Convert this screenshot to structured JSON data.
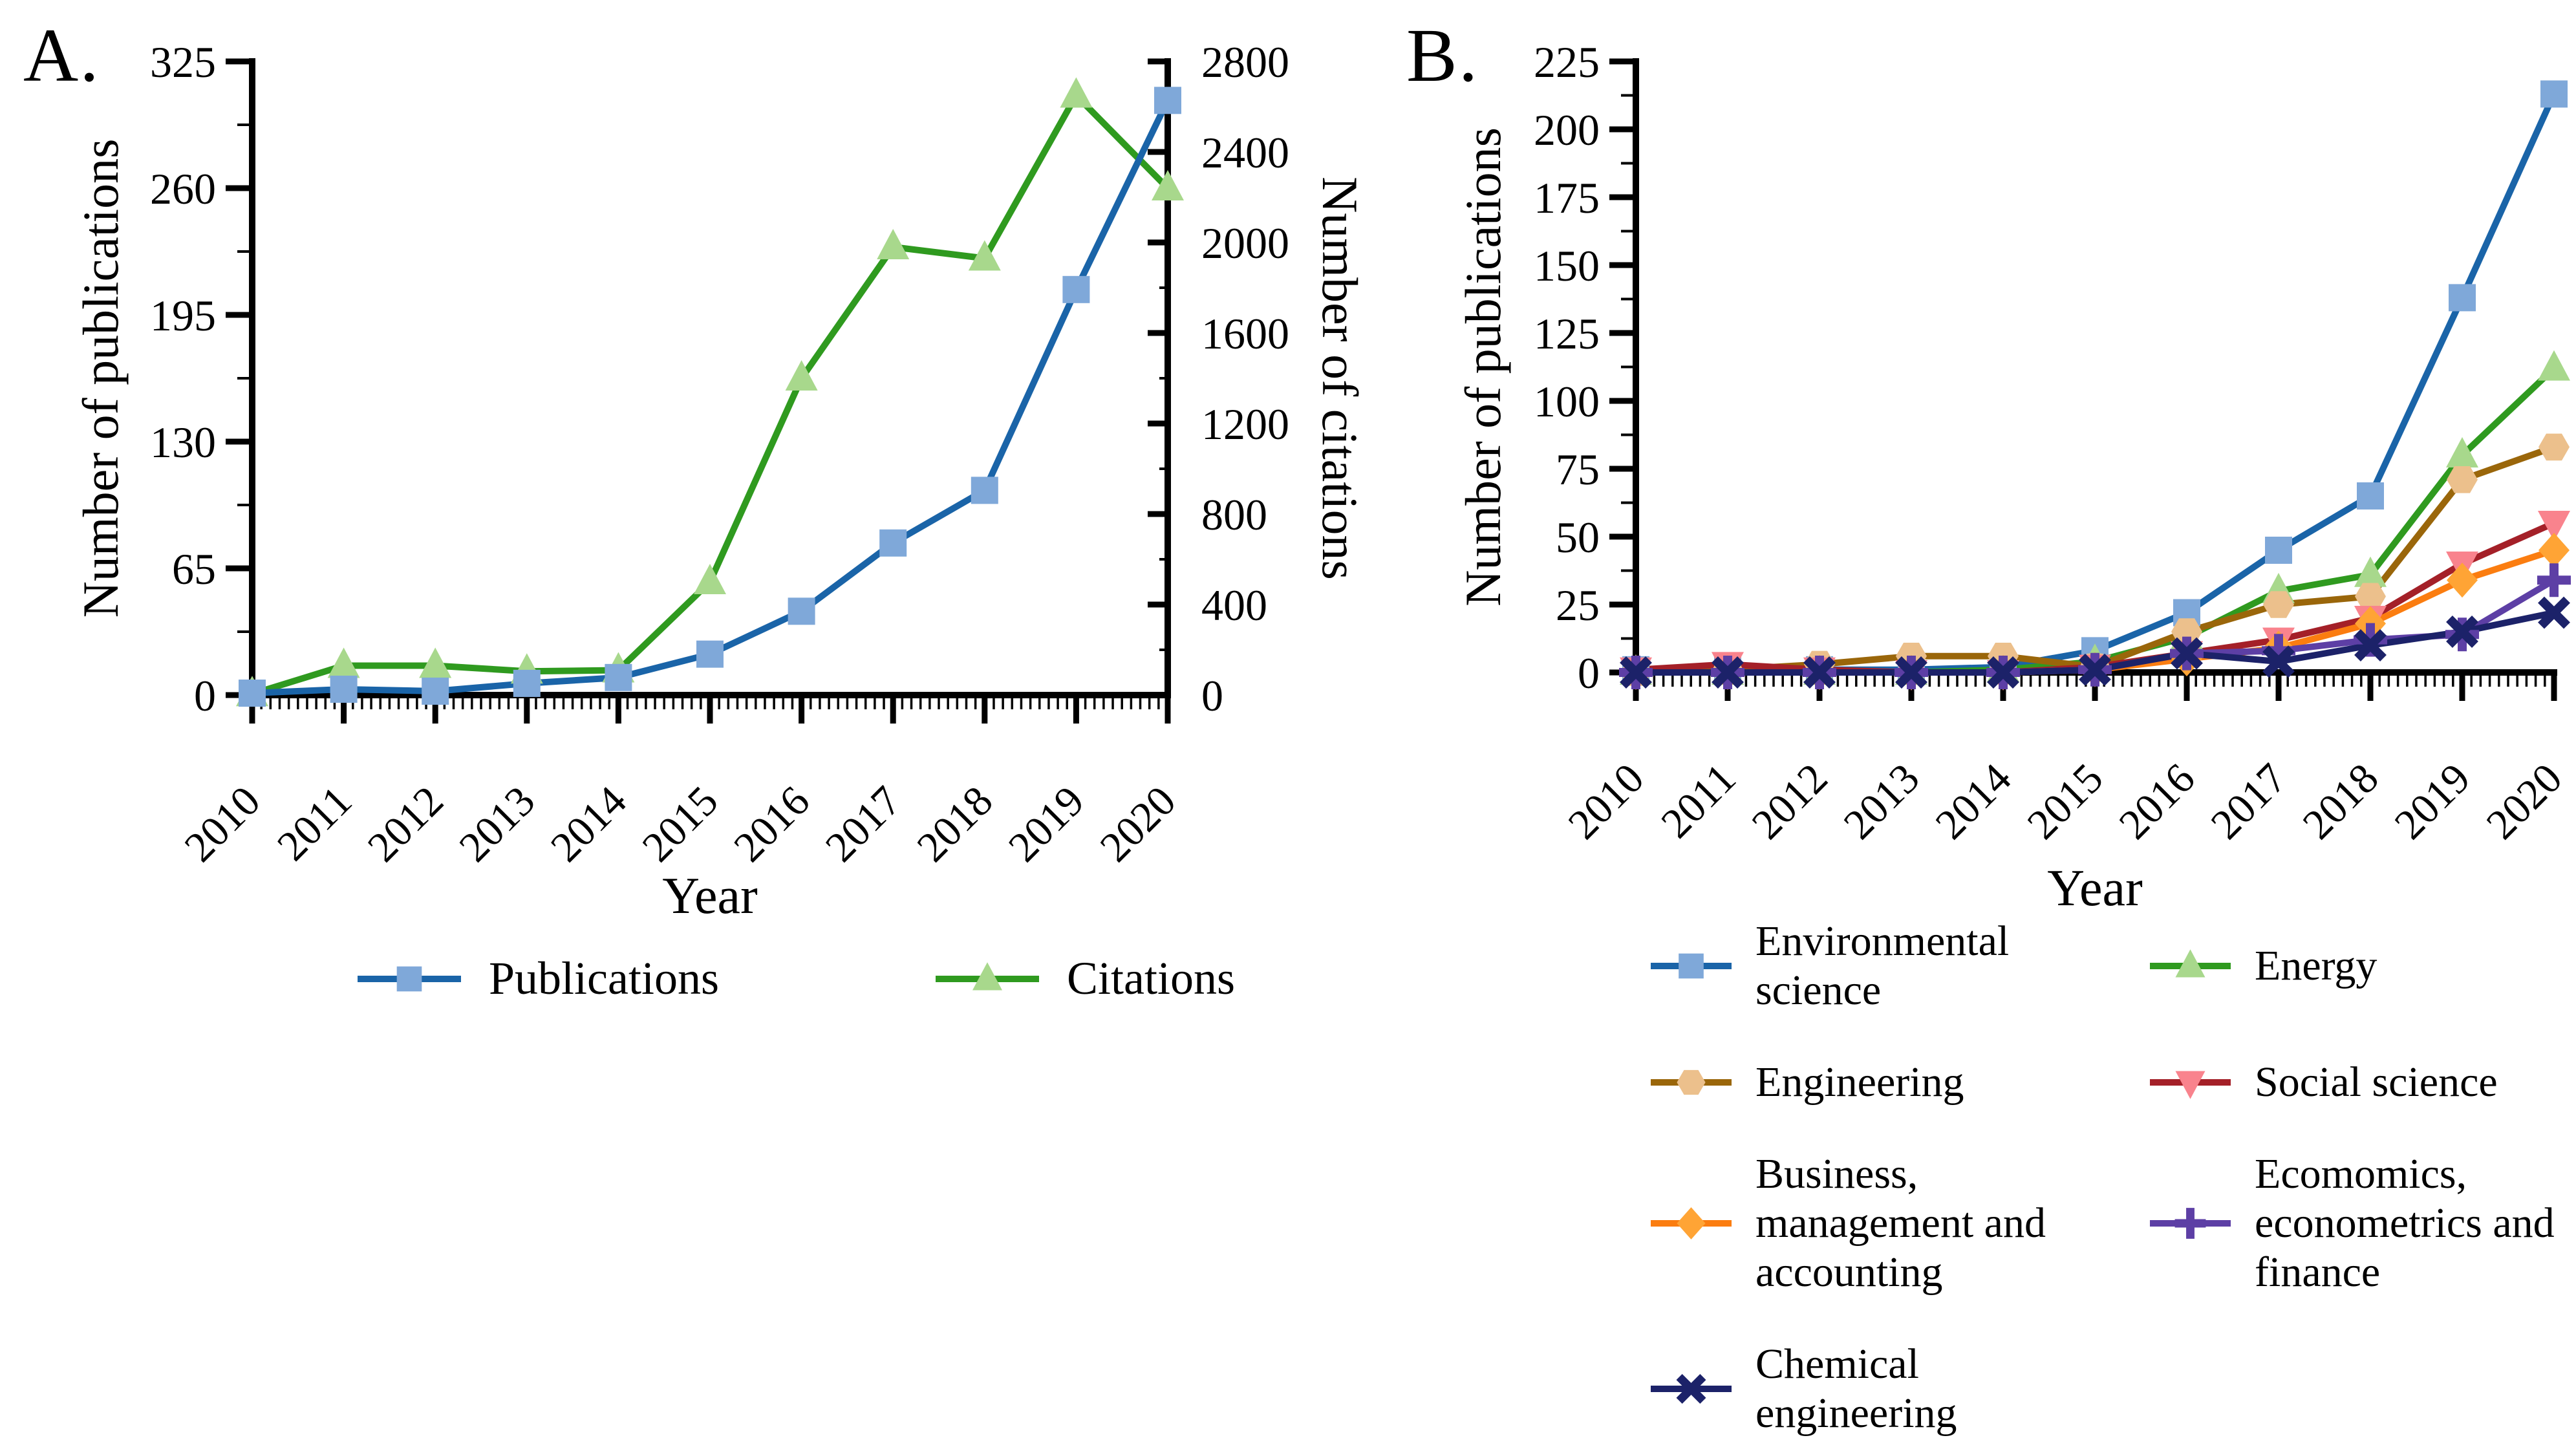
{
  "page": {
    "background": "#ffffff",
    "text_color": "#000000"
  },
  "figure": {
    "panel_a": {
      "label": "A.",
      "x_label": "Year",
      "y_left_label": "Number of publications",
      "y_right_label": "Number of citations",
      "legend": [
        {
          "series_index": 0,
          "label": "Publications"
        },
        {
          "series_index": 1,
          "label": "Citations"
        }
      ]
    },
    "panel_b": {
      "label": "B.",
      "x_label": "Year",
      "y_label": "Number of publications",
      "legend": [
        {
          "series_index": 0,
          "label": "Environmental\nscience"
        },
        {
          "series_index": 2,
          "label": "Engineering"
        },
        {
          "series_index": 4,
          "label": "Business,\nmanagement and\naccounting"
        },
        {
          "series_index": 6,
          "label": "Chemical\nengineering"
        },
        {
          "series_index": 1,
          "label": "Energy"
        },
        {
          "series_index": 3,
          "label": "Social science"
        },
        {
          "series_index": 5,
          "label": "Ecomomics,\neconometrics and\nfinance"
        }
      ]
    }
  },
  "chart_data": [
    {
      "type": "line",
      "panel": "A",
      "title": "",
      "xlabel": "Year",
      "ylabel_left": "Number of publications",
      "ylabel_right": "Number of citations",
      "x": [
        2010,
        2011,
        2012,
        2013,
        2014,
        2015,
        2016,
        2017,
        2018,
        2019,
        2020
      ],
      "ylim_left": [
        0,
        325
      ],
      "ytick_step_left": 65,
      "ylim_right": [
        0,
        2800
      ],
      "ytick_step_right": 400,
      "grid": false,
      "legend_position": "bottom",
      "series": [
        {
          "name": "Publications",
          "axis": "left",
          "marker": "square",
          "line_color": "#1a64a8",
          "marker_color": "#7fa8d9",
          "values": [
            1,
            3,
            2,
            6,
            9,
            21,
            43,
            78,
            105,
            208,
            305
          ]
        },
        {
          "name": "Citations",
          "axis": "right",
          "marker": "triangle-up",
          "line_color": "#2f9a1f",
          "marker_color": "#a8d88c",
          "values": [
            5,
            130,
            130,
            105,
            110,
            500,
            1400,
            1980,
            1930,
            2650,
            2240
          ]
        }
      ]
    },
    {
      "type": "line",
      "panel": "B",
      "title": "",
      "xlabel": "Year",
      "ylabel": "Number of publications",
      "x": [
        2010,
        2011,
        2012,
        2013,
        2014,
        2015,
        2016,
        2017,
        2018,
        2019,
        2020
      ],
      "ylim": [
        0,
        225
      ],
      "ytick_step": 25,
      "grid": false,
      "legend_position": "bottom",
      "series": [
        {
          "name": "Environmental science",
          "marker": "square",
          "line_color": "#1a64a8",
          "marker_color": "#7fa8d9",
          "values": [
            1,
            1,
            1,
            1,
            2,
            8,
            22,
            45,
            65,
            138,
            213
          ]
        },
        {
          "name": "Energy",
          "marker": "triangle-up",
          "line_color": "#2f9a1f",
          "marker_color": "#a8d88c",
          "values": [
            0,
            0,
            0,
            0,
            1,
            4,
            13,
            30,
            36,
            80,
            112
          ]
        },
        {
          "name": "Engineering",
          "marker": "hexagon",
          "line_color": "#9a660a",
          "marker_color": "#ecc08c",
          "values": [
            0,
            1,
            3,
            6,
            6,
            2,
            15,
            25,
            28,
            71,
            83
          ]
        },
        {
          "name": "Social science",
          "marker": "triangle-down",
          "line_color": "#a42028",
          "marker_color": "#f9838d",
          "values": [
            1,
            3,
            1,
            0,
            0,
            2,
            7,
            12,
            20,
            40,
            55
          ]
        },
        {
          "name": "Business, management and accounting",
          "marker": "diamond",
          "line_color": "#fb7d10",
          "marker_color": "#ffa435",
          "values": [
            0,
            0,
            0,
            0,
            0,
            1,
            5,
            9,
            18,
            34,
            45
          ]
        },
        {
          "name": "Ecomomics, econometrics and finance",
          "marker": "plus",
          "line_color": "#5d3fa5",
          "marker_color": "#5d3fa5",
          "values": [
            0,
            0,
            0,
            0,
            0,
            1,
            7,
            8,
            12,
            14,
            34
          ]
        },
        {
          "name": "Chemical engineering",
          "marker": "x",
          "line_color": "#1c2269",
          "marker_color": "#1c2269",
          "values": [
            0,
            0,
            0,
            0,
            0,
            1,
            7,
            4,
            10,
            15,
            22
          ]
        }
      ]
    }
  ]
}
